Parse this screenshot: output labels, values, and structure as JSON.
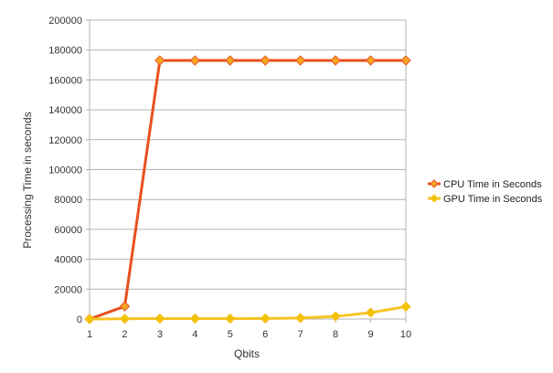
{
  "chart_data": {
    "type": "line",
    "title": "",
    "xlabel": "Qbits",
    "ylabel": "Processing Time in seconds",
    "x": [
      1,
      2,
      3,
      4,
      5,
      6,
      7,
      8,
      9,
      10
    ],
    "x_tick_labels": [
      "1",
      "2",
      "3",
      "4",
      "5",
      "6",
      "7",
      "8",
      "9",
      "10"
    ],
    "ylim": [
      0,
      200000
    ],
    "y_tick_labels": [
      "0",
      "20000",
      "40000",
      "60000",
      "80000",
      "100000",
      "120000",
      "140000",
      "160000",
      "180000",
      "200000"
    ],
    "grid": "horizontal",
    "legend_position": "right",
    "series": [
      {
        "name": "CPU Time in Seconds",
        "color": "#e8501e",
        "marker_color": "#f5a623",
        "values": [
          0,
          8500,
          173000,
          173000,
          173000,
          173000,
          173000,
          173000,
          173000,
          173000
        ]
      },
      {
        "name": "GPU Time in Seconds",
        "color": "#f7c325",
        "marker_color": "#f2c200",
        "values": [
          0,
          200,
          300,
          300,
          300,
          400,
          700,
          1800,
          4300,
          8300
        ]
      }
    ]
  }
}
